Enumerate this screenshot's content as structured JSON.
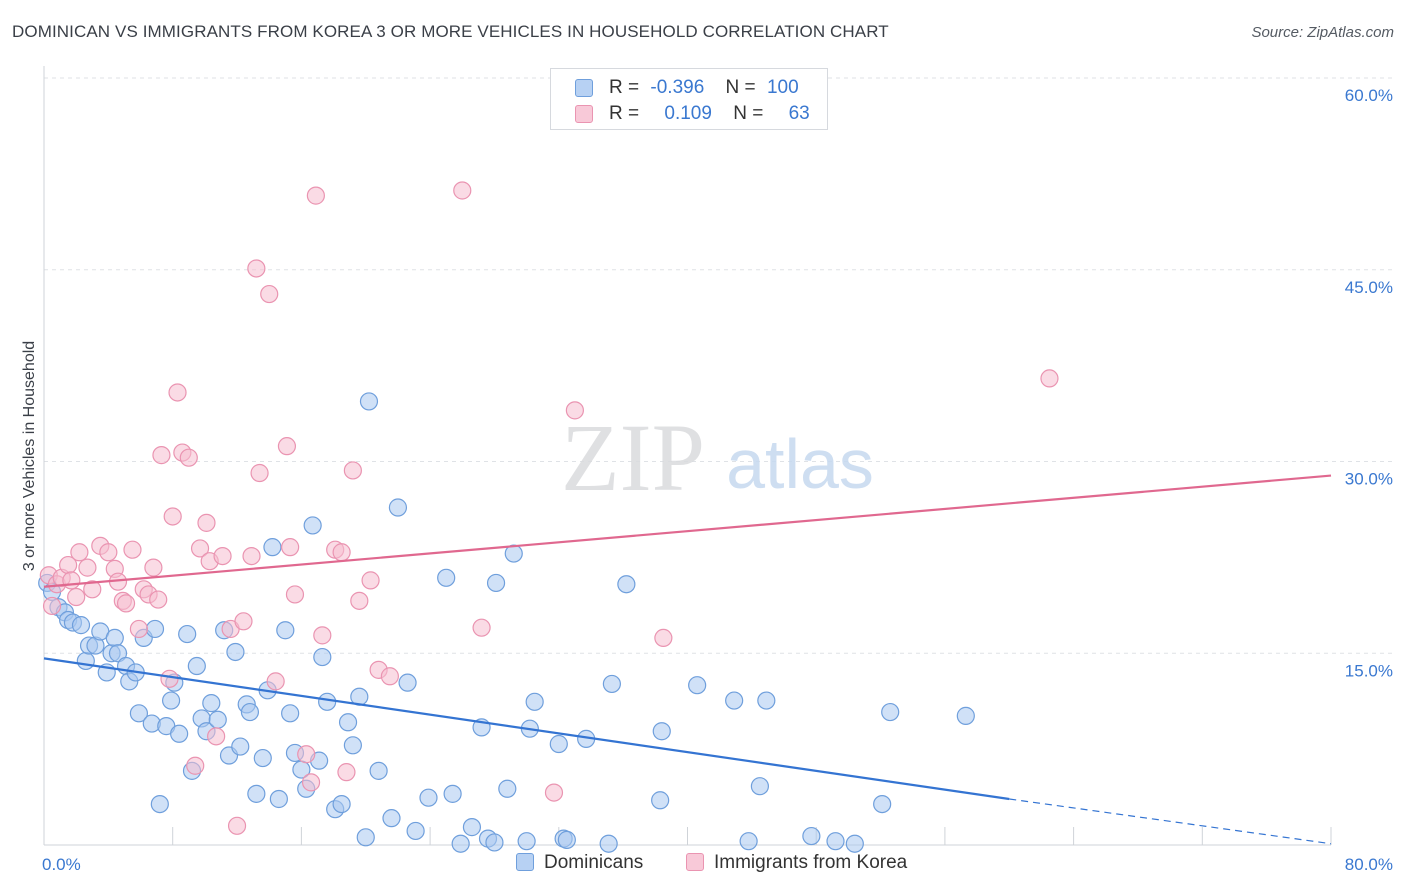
{
  "title": "DOMINICAN VS IMMIGRANTS FROM KOREA 3 OR MORE VEHICLES IN HOUSEHOLD CORRELATION CHART",
  "source": "Source: ZipAtlas.com",
  "watermark": {
    "zip": "ZIP",
    "atlas": "atlas"
  },
  "legend": {
    "rows": [
      {
        "r_label": "R =",
        "r_value": "-0.396",
        "n_label": "N =",
        "n_value": "100"
      },
      {
        "r_label": "R =",
        "r_value": "0.109",
        "n_label": "N =",
        "n_value": "63"
      }
    ]
  },
  "bottom_legend": [
    "Dominicans",
    "Immigrants from Korea"
  ],
  "chart_data": {
    "type": "scatter",
    "xlabel": "",
    "ylabel": "3 or more Vehicles in Household",
    "xlim": [
      0,
      80
    ],
    "ylim": [
      0,
      60
    ],
    "x_tick_labels": [
      "0.0%",
      "80.0%"
    ],
    "y_tick_values": [
      15,
      30,
      45,
      60
    ],
    "y_tick_labels": [
      "15.0%",
      "30.0%",
      "45.0%",
      "60.0%"
    ],
    "grid": true,
    "legend_position": "top-center",
    "colors": {
      "dominicans_fill": "#a9c8f0",
      "dominicans_stroke": "#6f9fdc",
      "dominicans_line": "#3474d2",
      "korea_fill": "#f6bed0",
      "korea_stroke": "#ea94b1",
      "korea_line": "#e0688f",
      "axis_text": "#3a78d0"
    },
    "series": [
      {
        "name": "Dominicans",
        "trend": {
          "x1": 0,
          "y1": 14.6,
          "x2": 60,
          "y2": 3.6,
          "dash_to_x": 80,
          "dash_to_y": 0.1
        },
        "points": [
          [
            0.2,
            20.5
          ],
          [
            0.5,
            19.8
          ],
          [
            0.9,
            18.6
          ],
          [
            1.3,
            18.2
          ],
          [
            1.5,
            17.6
          ],
          [
            1.8,
            17.4
          ],
          [
            2.3,
            17.2
          ],
          [
            2.6,
            14.4
          ],
          [
            2.8,
            15.6
          ],
          [
            3.2,
            15.6
          ],
          [
            3.5,
            16.7
          ],
          [
            3.9,
            13.5
          ],
          [
            4.2,
            15.0
          ],
          [
            4.4,
            16.2
          ],
          [
            4.6,
            15.0
          ],
          [
            5.1,
            14.0
          ],
          [
            5.3,
            12.8
          ],
          [
            5.7,
            13.5
          ],
          [
            5.9,
            10.3
          ],
          [
            6.2,
            16.2
          ],
          [
            6.7,
            9.5
          ],
          [
            6.9,
            16.9
          ],
          [
            7.2,
            3.2
          ],
          [
            7.6,
            9.3
          ],
          [
            7.9,
            11.3
          ],
          [
            8.1,
            12.7
          ],
          [
            8.4,
            8.7
          ],
          [
            8.9,
            16.5
          ],
          [
            9.2,
            5.8
          ],
          [
            9.5,
            14.0
          ],
          [
            9.8,
            9.9
          ],
          [
            10.1,
            8.9
          ],
          [
            10.4,
            11.1
          ],
          [
            10.8,
            9.8
          ],
          [
            11.2,
            16.8
          ],
          [
            11.5,
            7.0
          ],
          [
            11.9,
            15.1
          ],
          [
            12.2,
            7.7
          ],
          [
            12.6,
            11.0
          ],
          [
            12.8,
            10.4
          ],
          [
            13.2,
            4.0
          ],
          [
            13.6,
            6.8
          ],
          [
            13.9,
            12.1
          ],
          [
            14.2,
            23.3
          ],
          [
            14.6,
            3.6
          ],
          [
            15.0,
            16.8
          ],
          [
            15.3,
            10.3
          ],
          [
            15.6,
            7.2
          ],
          [
            16.0,
            5.9
          ],
          [
            16.3,
            4.4
          ],
          [
            16.7,
            25.0
          ],
          [
            17.1,
            6.6
          ],
          [
            17.3,
            14.7
          ],
          [
            17.6,
            11.2
          ],
          [
            18.1,
            2.8
          ],
          [
            18.5,
            3.2
          ],
          [
            18.9,
            9.6
          ],
          [
            19.2,
            7.8
          ],
          [
            19.6,
            11.6
          ],
          [
            20.0,
            0.6
          ],
          [
            20.2,
            34.7
          ],
          [
            20.8,
            5.8
          ],
          [
            21.6,
            2.1
          ],
          [
            22.0,
            26.4
          ],
          [
            22.6,
            12.7
          ],
          [
            23.1,
            1.1
          ],
          [
            23.9,
            3.7
          ],
          [
            25.0,
            20.9
          ],
          [
            25.4,
            4.0
          ],
          [
            26.6,
            1.4
          ],
          [
            27.2,
            9.2
          ],
          [
            27.6,
            0.5
          ],
          [
            28.0,
            0.2
          ],
          [
            28.1,
            20.5
          ],
          [
            28.8,
            4.4
          ],
          [
            29.2,
            22.8
          ],
          [
            30.2,
            9.1
          ],
          [
            30.5,
            11.2
          ],
          [
            32.0,
            7.9
          ],
          [
            32.3,
            0.5
          ],
          [
            32.5,
            0.4
          ],
          [
            33.7,
            8.3
          ],
          [
            35.3,
            12.6
          ],
          [
            36.2,
            20.4
          ],
          [
            38.3,
            3.5
          ],
          [
            38.4,
            8.9
          ],
          [
            40.6,
            12.5
          ],
          [
            42.9,
            11.3
          ],
          [
            43.8,
            0.3
          ],
          [
            44.5,
            4.6
          ],
          [
            44.9,
            11.3
          ],
          [
            47.7,
            0.7
          ],
          [
            49.2,
            0.3
          ],
          [
            50.4,
            0.1
          ],
          [
            52.1,
            3.2
          ],
          [
            52.6,
            10.4
          ],
          [
            57.3,
            10.1
          ],
          [
            30.0,
            0.3
          ],
          [
            25.9,
            0.1
          ],
          [
            35.1,
            0.1
          ]
        ]
      },
      {
        "name": "Immigrants from Korea",
        "trend": {
          "x1": 0,
          "y1": 20.2,
          "x2": 80,
          "y2": 28.9
        },
        "points": [
          [
            0.3,
            21.1
          ],
          [
            0.5,
            18.7
          ],
          [
            0.8,
            20.4
          ],
          [
            1.1,
            20.9
          ],
          [
            1.5,
            21.9
          ],
          [
            1.7,
            20.7
          ],
          [
            2.0,
            19.4
          ],
          [
            2.2,
            22.9
          ],
          [
            2.7,
            21.7
          ],
          [
            3.0,
            20.0
          ],
          [
            3.5,
            23.4
          ],
          [
            4.0,
            22.9
          ],
          [
            4.4,
            21.6
          ],
          [
            4.6,
            20.6
          ],
          [
            4.9,
            19.1
          ],
          [
            5.1,
            18.9
          ],
          [
            5.5,
            23.1
          ],
          [
            5.9,
            16.9
          ],
          [
            6.2,
            20.0
          ],
          [
            6.5,
            19.6
          ],
          [
            6.8,
            21.7
          ],
          [
            7.1,
            19.2
          ],
          [
            7.3,
            30.5
          ],
          [
            7.8,
            13.0
          ],
          [
            8.0,
            25.7
          ],
          [
            8.3,
            35.4
          ],
          [
            8.6,
            30.7
          ],
          [
            9.0,
            30.3
          ],
          [
            9.4,
            6.2
          ],
          [
            9.7,
            23.2
          ],
          [
            10.1,
            25.2
          ],
          [
            10.3,
            22.2
          ],
          [
            10.7,
            8.5
          ],
          [
            11.1,
            22.6
          ],
          [
            11.6,
            16.9
          ],
          [
            12.0,
            1.5
          ],
          [
            12.4,
            17.5
          ],
          [
            12.9,
            22.6
          ],
          [
            13.2,
            45.1
          ],
          [
            13.4,
            29.1
          ],
          [
            14.0,
            43.1
          ],
          [
            14.4,
            12.8
          ],
          [
            15.1,
            31.2
          ],
          [
            15.3,
            23.3
          ],
          [
            15.6,
            19.6
          ],
          [
            16.3,
            7.1
          ],
          [
            16.6,
            4.9
          ],
          [
            16.9,
            50.8
          ],
          [
            17.3,
            16.4
          ],
          [
            18.1,
            23.1
          ],
          [
            18.5,
            22.9
          ],
          [
            18.8,
            5.7
          ],
          [
            19.2,
            29.3
          ],
          [
            19.6,
            19.1
          ],
          [
            20.3,
            20.7
          ],
          [
            20.8,
            13.7
          ],
          [
            21.5,
            13.2
          ],
          [
            26.0,
            51.2
          ],
          [
            27.2,
            17.0
          ],
          [
            31.7,
            4.1
          ],
          [
            33.0,
            34.0
          ],
          [
            38.5,
            16.2
          ],
          [
            62.5,
            36.5
          ]
        ]
      }
    ]
  }
}
